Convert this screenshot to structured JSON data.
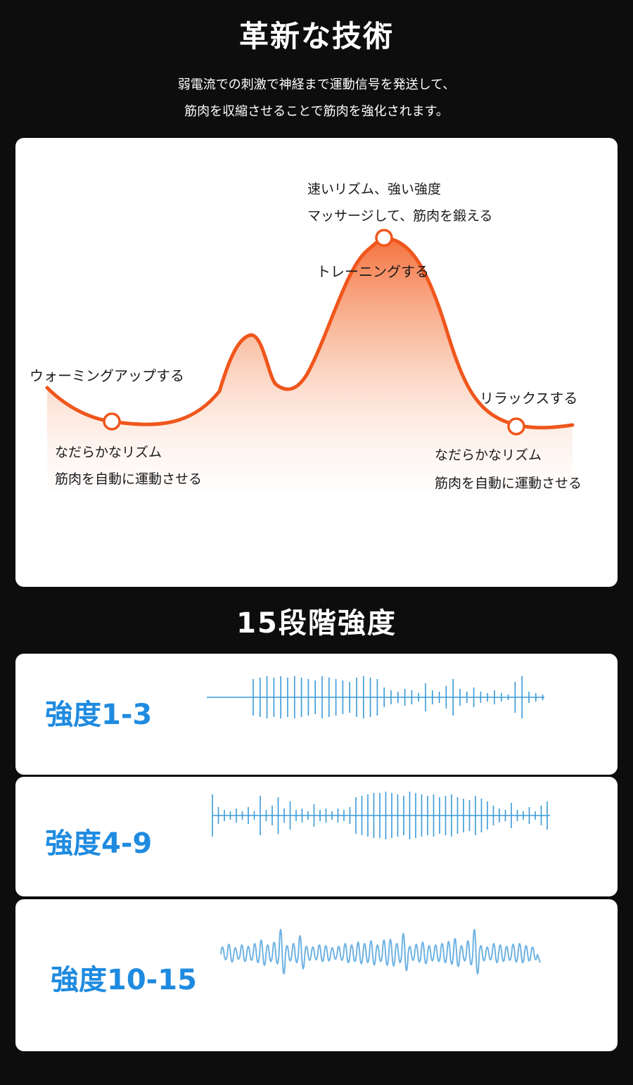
{
  "tech": {
    "title": "革新な技術",
    "desc_line1": "弱電流での刺激で神経まで運動信号を発送して、",
    "desc_line2": "筋肉を収縮させることで筋肉を強化されます。"
  },
  "curve": {
    "peak_line1": "速いリズム、強い強度",
    "peak_line2": "マッサージして、筋肉を鍛える",
    "peak_line3": "トレーニングする",
    "warmup": "ウォーミングアップする",
    "relax": "リラックスする",
    "left_line1": "なだらかなリズム",
    "left_line2": "筋肉を自動に運動させる",
    "right_line1": "なだらかなリズム",
    "right_line2": "筋肉を自動に運動させる",
    "line_color": "#f0561c",
    "fill_color": "#f7a57e"
  },
  "levels": {
    "title": "15段階強度",
    "low": "強度1-3",
    "mid": "強度4-9",
    "high": "強度10-15",
    "label_color": "#1f8be0",
    "wave_color": "#3a9ad9"
  }
}
